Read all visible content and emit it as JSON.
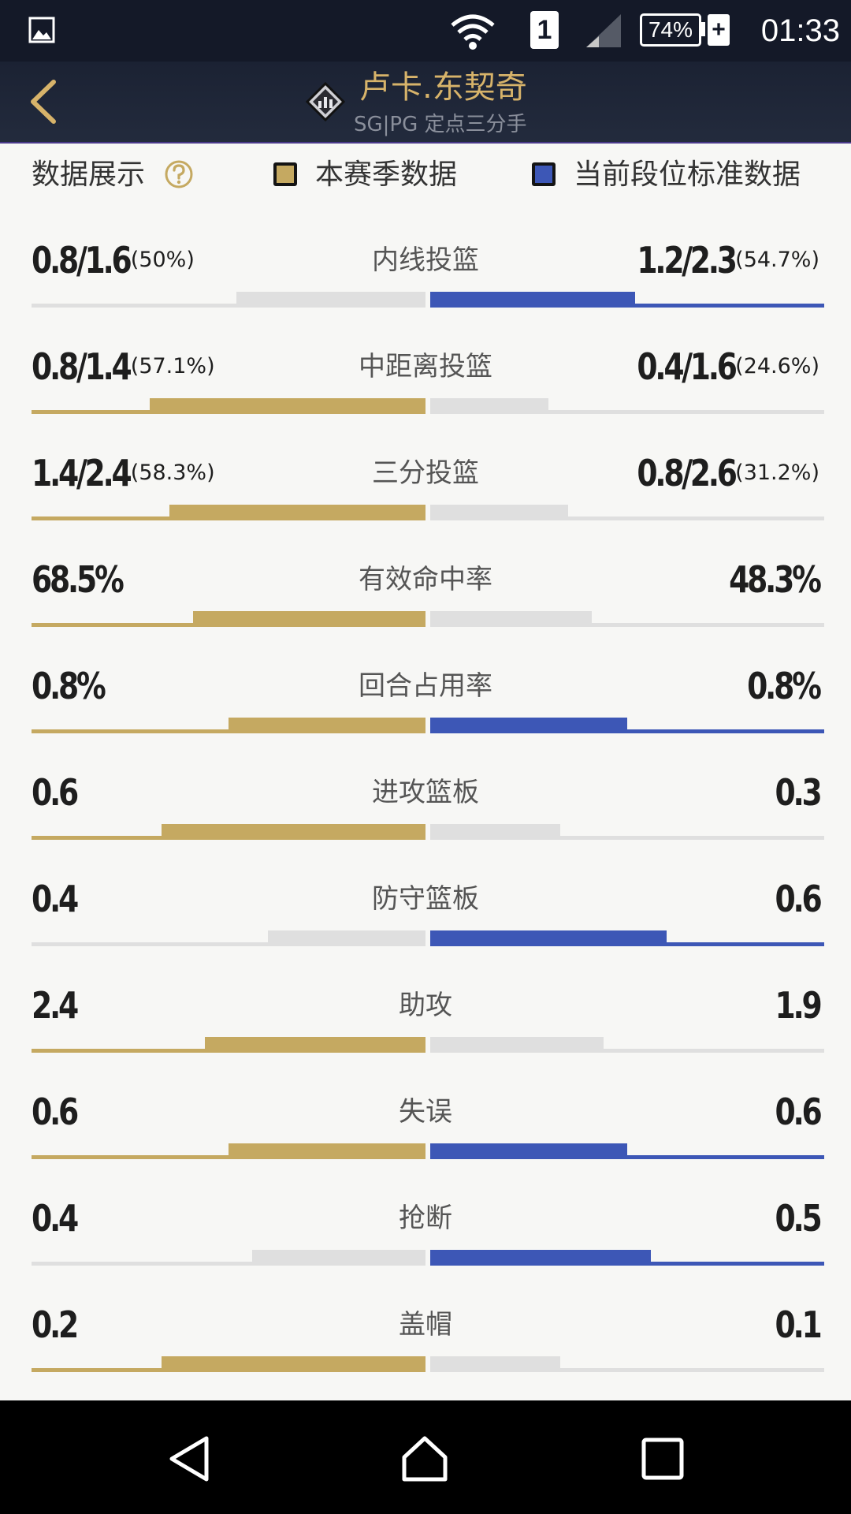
{
  "status_bar": {
    "sim_slot": "1",
    "battery_text": "74%",
    "charging_text": "+",
    "time": "01:33",
    "icons": [
      "gallery-icon",
      "wifi-icon",
      "signal-icon",
      "battery-icon"
    ]
  },
  "header": {
    "player_name": "卢卡.东契奇",
    "player_role": "SG|PG 定点三分手",
    "icons": [
      "back-icon",
      "rank-icon"
    ]
  },
  "legend": {
    "title": "数据展示",
    "season_label": "本赛季数据",
    "standard_label": "当前段位标准数据",
    "colors": {
      "season": "#c5a961",
      "standard": "#3d57b6",
      "inactive": "#dfdfdf"
    }
  },
  "stats": [
    {
      "label": "内线投篮",
      "left": "0.8/1.6",
      "left_pct": "(50%)",
      "right": "1.2/2.3",
      "right_pct": "(54.7%)",
      "left_fill": 0.48,
      "right_fill": 0.52,
      "winner": "right"
    },
    {
      "label": "中距离投篮",
      "left": "0.8/1.4",
      "left_pct": "(57.1%)",
      "right": "0.4/1.6",
      "right_pct": "(24.6%)",
      "left_fill": 0.7,
      "right_fill": 0.3,
      "winner": "left"
    },
    {
      "label": "三分投篮",
      "left": "1.4/2.4",
      "left_pct": "(58.3%)",
      "right": "0.8/2.6",
      "right_pct": "(31.2%)",
      "left_fill": 0.65,
      "right_fill": 0.35,
      "winner": "left"
    },
    {
      "label": "有效命中率",
      "left": "68.5%",
      "left_pct": "",
      "right": "48.3%",
      "right_pct": "",
      "left_fill": 0.59,
      "right_fill": 0.41,
      "winner": "left"
    },
    {
      "label": "回合占用率",
      "left": "0.8%",
      "left_pct": "",
      "right": "0.8%",
      "right_pct": "",
      "left_fill": 0.5,
      "right_fill": 0.5,
      "winner": "both"
    },
    {
      "label": "进攻篮板",
      "left": "0.6",
      "left_pct": "",
      "right": "0.3",
      "right_pct": "",
      "left_fill": 0.67,
      "right_fill": 0.33,
      "winner": "left"
    },
    {
      "label": "防守篮板",
      "left": "0.4",
      "left_pct": "",
      "right": "0.6",
      "right_pct": "",
      "left_fill": 0.4,
      "right_fill": 0.6,
      "winner": "right"
    },
    {
      "label": "助攻",
      "left": "2.4",
      "left_pct": "",
      "right": "1.9",
      "right_pct": "",
      "left_fill": 0.56,
      "right_fill": 0.44,
      "winner": "left"
    },
    {
      "label": "失误",
      "left": "0.6",
      "left_pct": "",
      "right": "0.6",
      "right_pct": "",
      "left_fill": 0.5,
      "right_fill": 0.5,
      "winner": "both"
    },
    {
      "label": "抢断",
      "left": "0.4",
      "left_pct": "",
      "right": "0.5",
      "right_pct": "",
      "left_fill": 0.44,
      "right_fill": 0.56,
      "winner": "right"
    },
    {
      "label": "盖帽",
      "left": "0.2",
      "left_pct": "",
      "right": "0.1",
      "right_pct": "",
      "left_fill": 0.67,
      "right_fill": 0.33,
      "winner": "left"
    }
  ],
  "nav": {
    "icons": [
      "nav-back-icon",
      "nav-home-icon",
      "nav-recent-icon"
    ]
  }
}
